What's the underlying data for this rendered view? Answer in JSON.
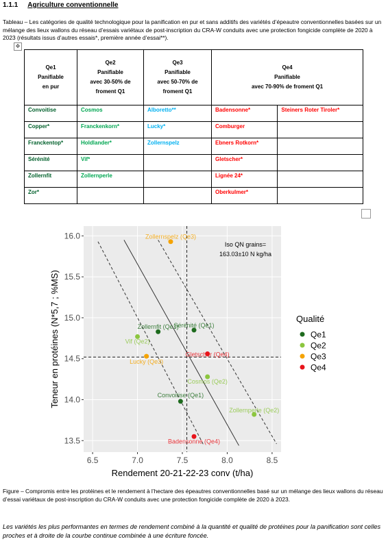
{
  "heading": {
    "number": "1.1.1",
    "title": "Agriculture conventionnelle"
  },
  "table_caption": "Tableau – Les catégories de qualité technologique pour la panification en pur et sans additifs des variétés d’épeautre conventionnelles basées sur un mélange des lieux wallons du réseau d’essais variétaux de post-inscription du CRA-W conduits avec une protection fongicide complète de 2020 à 2023 (résultats issus d’autres essais*, première année d’essai**).",
  "table": {
    "header": [
      [
        "Qe1",
        "Panifiable",
        "en pur"
      ],
      [
        "Qe2",
        "Panifiable",
        "avec 30-50% de froment Q1"
      ],
      [
        "Qe3",
        "Panifiable",
        "avec 50-70% de froment Q1"
      ],
      [
        "Qe4",
        "Panifiable",
        "avec 70-90% de froment Q1"
      ]
    ],
    "column_colors": [
      "#00602b",
      "#00a651",
      "#00b0f0",
      "#ff0000",
      "#ff0000"
    ],
    "rows": [
      [
        "Convoitise",
        "Cosmos",
        "Alboretto**",
        "Badensonne*",
        "Steiners Roter Tiroler*"
      ],
      [
        "Copper*",
        "Franckenkorn*",
        "Lucky*",
        "Comburger",
        null
      ],
      [
        "Franckentop*",
        "Holdlander*",
        "Zollernspelz",
        "Ebners Rotkorn*",
        null
      ],
      [
        "Sérénité",
        "Vif*",
        null,
        "Gletscher*",
        null
      ],
      [
        "Zollernfit",
        "Zollernperle",
        null,
        "Lignée 24*",
        null
      ],
      [
        "Zor*",
        null,
        null,
        "Oberkulmer*",
        null
      ]
    ]
  },
  "chart_data": {
    "type": "scatter",
    "x_label": "Rendement 20-21-22-23 conv (t/ha)",
    "y_label": "Teneur en protéines (N*5,7 ; %MS)",
    "xlim": [
      6.4,
      8.6
    ],
    "ylim": [
      13.36,
      16.12
    ],
    "xticks": [
      6.5,
      {
        "value": 7,
        "label": "7.0"
      },
      7.5,
      {
        "value": 8,
        "label": "8.0"
      },
      8.5
    ],
    "yticks": [
      13.5,
      {
        "value": 14,
        "label": "14.0"
      },
      14.5,
      {
        "value": 15,
        "label": "15.0"
      },
      15.5,
      {
        "value": 16,
        "label": "16.0"
      }
    ],
    "grid": true,
    "legend_title": "Qualité",
    "legend_position": "right",
    "annotation": [
      "Iso QN grains=",
      "163.03±10 N kg/ha"
    ],
    "vline": 7.55,
    "hline": 14.52,
    "lines": [
      {
        "style": "solid",
        "x": [
          6.85,
          8.13
        ],
        "y": [
          15.95,
          13.44
        ]
      },
      {
        "style": "dashed",
        "x": [
          6.56,
          7.74
        ],
        "y": [
          15.93,
          13.44
        ]
      },
      {
        "style": "dashed",
        "x": [
          7.23,
          8.55
        ],
        "y": [
          15.95,
          13.46
        ]
      }
    ],
    "series": [
      {
        "name": "Qe1",
        "color": "#1e6b1e",
        "x": [
          7.23,
          7.63,
          7.48
        ],
        "values": [
          14.83,
          14.85,
          13.98
        ],
        "labels": [
          "Zollernfit (Qe1)",
          "Sérénité (Qe1)",
          "Convoitise (Qe1)"
        ]
      },
      {
        "name": "Qe2",
        "color": "#8cc63f",
        "x": [
          7.0,
          7.78,
          8.3
        ],
        "values": [
          14.77,
          14.28,
          13.82
        ],
        "labels": [
          "Vif (Qe2)",
          "Cosmos (Qe2)",
          "Zollernperle (Qe2)"
        ]
      },
      {
        "name": "Qe3",
        "color": "#f5a300",
        "x": [
          7.37,
          7.1
        ],
        "values": [
          15.93,
          14.53
        ],
        "labels": [
          "Zollernspelz (Qe3)",
          "Lucky (Qe3)"
        ]
      },
      {
        "name": "Qe4",
        "color": "#e8141b",
        "x": [
          7.78,
          7.63
        ],
        "values": [
          14.56,
          13.55
        ],
        "labels": [
          "Gletscher (Qe4)",
          "Badensonne (Qe4)"
        ]
      }
    ]
  },
  "figure_caption": "Figure – Compromis entre les protéines et le rendement à l’hectare des épeautres conventionnelles basé sur un mélange des lieux wallons du réseau d’essai variétaux de post-inscription du CRA-W conduits avec une protection fongicide complète de 2020 à 2023.",
  "conclusion": "Les variétés les plus performantes en termes de rendement combiné à la quantité et qualité de protéines pour la panification sont celles proches et à droite de la courbe continue combinée à une écriture foncée."
}
